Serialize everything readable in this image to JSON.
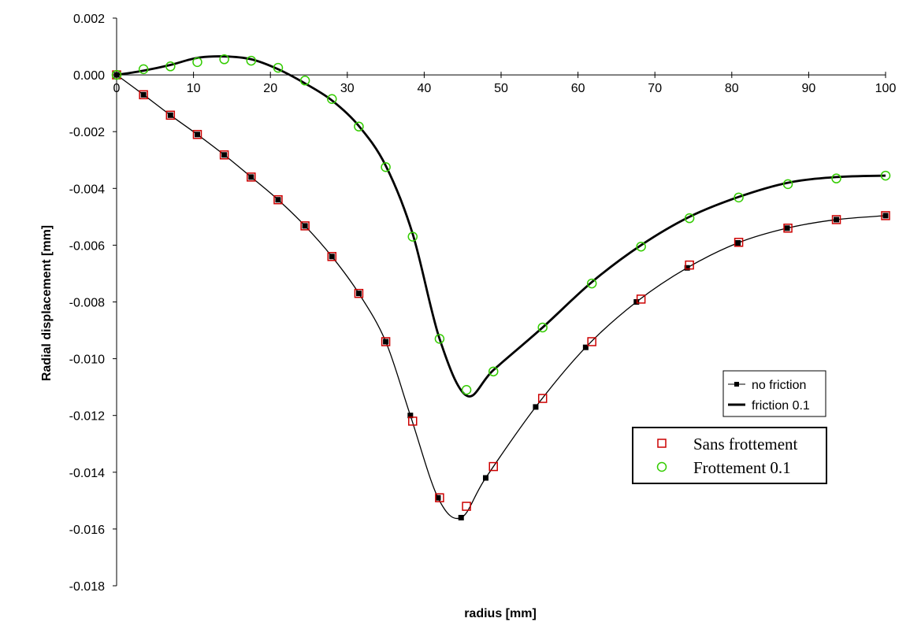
{
  "chart_data": {
    "type": "line",
    "xlabel": "radius [mm]",
    "ylabel": "Radial displacement [mm]",
    "xlim": [
      0,
      100
    ],
    "ylim": [
      -0.018,
      0.002
    ],
    "xticks": [
      "0",
      "10",
      "20",
      "30",
      "40",
      "50",
      "60",
      "70",
      "80",
      "90",
      "100"
    ],
    "yticks": [
      "0.002",
      "0.000",
      "-0.002",
      "-0.004",
      "-0.006",
      "-0.008",
      "-0.010",
      "-0.012",
      "-0.014",
      "-0.016",
      "-0.018"
    ],
    "grid": false,
    "colors": {
      "line": "#000000",
      "sans_marker": "#cc0000",
      "frott_marker": "#33cc00"
    },
    "series": [
      {
        "name": "no friction",
        "kind": "line+square-marker",
        "x": [
          0,
          3.5,
          7,
          10.5,
          14,
          17.5,
          21,
          24.5,
          28,
          31.5,
          35,
          38.2,
          41.8,
          44.8,
          48,
          54.5,
          61,
          67.6,
          74.2,
          80.8,
          87.2,
          93.6,
          100
        ],
        "y": [
          0.0,
          -0.0007,
          -0.00142,
          -0.0021,
          -0.00282,
          -0.0036,
          -0.0044,
          -0.00532,
          -0.0064,
          -0.0077,
          -0.0094,
          -0.012,
          -0.0149,
          -0.0156,
          -0.0142,
          -0.0117,
          -0.0096,
          -0.008,
          -0.0068,
          -0.00592,
          -0.0054,
          -0.0051,
          -0.00496
        ]
      },
      {
        "name": "friction 0.1",
        "kind": "line",
        "x": [
          0,
          3.5,
          7,
          10.5,
          14,
          17.5,
          21,
          24.5,
          28,
          31.5,
          35,
          38.5,
          42,
          45.5,
          49,
          55.4,
          61.8,
          68.2,
          74.5,
          80.9,
          87.3,
          93.6,
          100
        ],
        "y": [
          0.0,
          0.00015,
          0.00035,
          0.0006,
          0.00065,
          0.00055,
          0.0002,
          -0.0003,
          -0.0009,
          -0.0018,
          -0.0032,
          -0.0056,
          -0.0093,
          -0.0113,
          -0.0104,
          -0.0089,
          -0.0073,
          -0.006,
          -0.005,
          -0.0043,
          -0.0038,
          -0.0036,
          -0.00355
        ]
      },
      {
        "name": "Sans frottement",
        "kind": "open-square-marker",
        "x": [
          0,
          3.5,
          7,
          10.5,
          14,
          17.5,
          21,
          24.5,
          28,
          31.5,
          35,
          38.5,
          42,
          45.5,
          49,
          55.4,
          61.8,
          68.2,
          74.5,
          80.9,
          87.3,
          93.6,
          100
        ],
        "y": [
          0.0,
          -0.0007,
          -0.00142,
          -0.0021,
          -0.00282,
          -0.0036,
          -0.0044,
          -0.00532,
          -0.0064,
          -0.0077,
          -0.0094,
          -0.0122,
          -0.0149,
          -0.0152,
          -0.0138,
          -0.0114,
          -0.0094,
          -0.0079,
          -0.0067,
          -0.0059,
          -0.0054,
          -0.0051,
          -0.00496
        ]
      },
      {
        "name": "Frottement 0.1",
        "kind": "open-circle-marker",
        "x": [
          0,
          3.5,
          7,
          10.5,
          14,
          17.5,
          21,
          24.5,
          28,
          31.5,
          35,
          38.5,
          42,
          45.5,
          49,
          55.4,
          61.8,
          68.2,
          74.5,
          80.9,
          87.3,
          93.6,
          100
        ],
        "y": [
          0.0,
          0.0002,
          0.0003,
          0.00045,
          0.00055,
          0.0005,
          0.00025,
          -0.0002,
          -0.00085,
          -0.00182,
          -0.00325,
          -0.0057,
          -0.0093,
          -0.0111,
          -0.01045,
          -0.0089,
          -0.00735,
          -0.00605,
          -0.00505,
          -0.00432,
          -0.00385,
          -0.00365,
          -0.00355
        ]
      }
    ],
    "legends": [
      {
        "entries": [
          "no friction",
          "friction 0.1"
        ]
      },
      {
        "entries": [
          "Sans frottement",
          "Frottement 0.1"
        ]
      }
    ]
  }
}
